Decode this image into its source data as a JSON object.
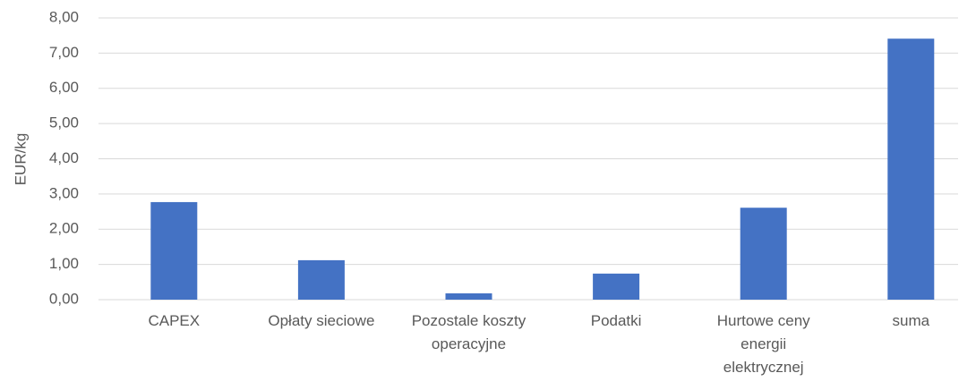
{
  "chart_data": {
    "type": "bar",
    "y_label": "EUR/kg",
    "categories": [
      "CAPEX",
      "Opłaty sieciowe",
      "Pozostale koszty operacyjne",
      "Podatki",
      "Hurtowe ceny energii elektrycznej",
      "suma"
    ],
    "values": [
      2.77,
      1.12,
      0.18,
      0.74,
      2.61,
      7.41
    ],
    "color": "#4472c4",
    "ylim": [
      0,
      8
    ],
    "yticks": [
      {
        "value": 0,
        "label": "0,00"
      },
      {
        "value": 1,
        "label": "1,00"
      },
      {
        "value": 2,
        "label": "2,00"
      },
      {
        "value": 3,
        "label": "3,00"
      },
      {
        "value": 4,
        "label": "4,00"
      },
      {
        "value": 5,
        "label": "5,00"
      },
      {
        "value": 6,
        "label": "6,00"
      },
      {
        "value": 7,
        "label": "7,00"
      },
      {
        "value": 8,
        "label": "8,00"
      }
    ],
    "grid": true
  }
}
